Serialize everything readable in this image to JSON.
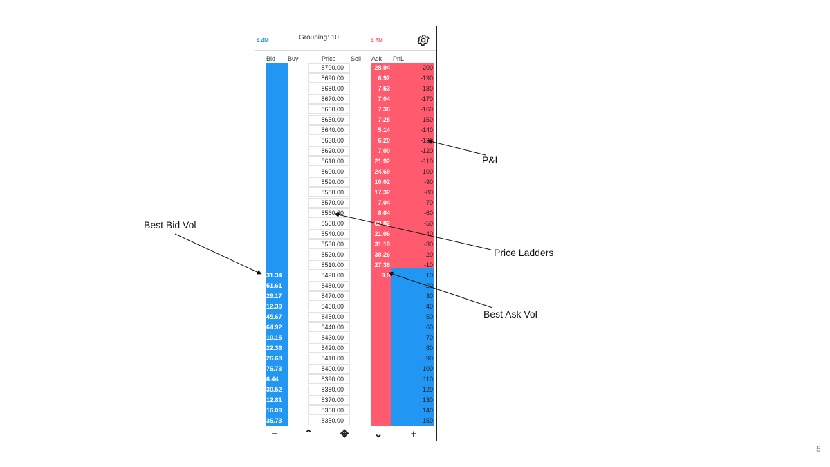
{
  "toolbar": {
    "bid_total": "4.4M",
    "grouping": "Grouping: 10",
    "ask_total": "4.6M",
    "settings_icon": "gear-icon"
  },
  "headers": {
    "bid": "Bid",
    "buy": "Buy",
    "price": "Price",
    "sell": "Sell",
    "ask": "Ask",
    "pnl": "PnL"
  },
  "rows": [
    {
      "price": "8700.00",
      "bid": "",
      "ask": "28.94",
      "pnl": "-200"
    },
    {
      "price": "8690.00",
      "bid": "",
      "ask": "6.92",
      "pnl": "-190"
    },
    {
      "price": "8680.00",
      "bid": "",
      "ask": "7.53",
      "pnl": "-180"
    },
    {
      "price": "8670.00",
      "bid": "",
      "ask": "7.04",
      "pnl": "-170"
    },
    {
      "price": "8660.00",
      "bid": "",
      "ask": "7.36",
      "pnl": "-160"
    },
    {
      "price": "8650.00",
      "bid": "",
      "ask": "7.25",
      "pnl": "-150"
    },
    {
      "price": "8640.00",
      "bid": "",
      "ask": "5.14",
      "pnl": "-140"
    },
    {
      "price": "8630.00",
      "bid": "",
      "ask": "6.20",
      "pnl": "-130"
    },
    {
      "price": "8620.00",
      "bid": "",
      "ask": "7.00",
      "pnl": "-120"
    },
    {
      "price": "8610.00",
      "bid": "",
      "ask": "21.92",
      "pnl": "-110"
    },
    {
      "price": "8600.00",
      "bid": "",
      "ask": "24.69",
      "pnl": "-100"
    },
    {
      "price": "8590.00",
      "bid": "",
      "ask": "10.02",
      "pnl": "-90"
    },
    {
      "price": "8580.00",
      "bid": "",
      "ask": "17.32",
      "pnl": "-80"
    },
    {
      "price": "8570.00",
      "bid": "",
      "ask": "7.04",
      "pnl": "-70"
    },
    {
      "price": "8560.00",
      "bid": "",
      "ask": "8.64",
      "pnl": "-60"
    },
    {
      "price": "8550.00",
      "bid": "",
      "ask": "69.82",
      "pnl": "-50"
    },
    {
      "price": "8540.00",
      "bid": "",
      "ask": "21.06",
      "pnl": "-40"
    },
    {
      "price": "8530.00",
      "bid": "",
      "ask": "31.19",
      "pnl": "-30"
    },
    {
      "price": "8520.00",
      "bid": "",
      "ask": "38.26",
      "pnl": "-20"
    },
    {
      "price": "8510.00",
      "bid": "",
      "ask": "27.36",
      "pnl": "-10"
    },
    {
      "price": "8490.00",
      "bid": "31.34",
      "ask": "9.9",
      "pnl": "10"
    },
    {
      "price": "8480.00",
      "bid": "51.61",
      "ask": "",
      "pnl": "20"
    },
    {
      "price": "8470.00",
      "bid": "29.17",
      "ask": "",
      "pnl": "30"
    },
    {
      "price": "8460.00",
      "bid": "12.30",
      "ask": "",
      "pnl": "40"
    },
    {
      "price": "8450.00",
      "bid": "45.67",
      "ask": "",
      "pnl": "50"
    },
    {
      "price": "8440.00",
      "bid": "64.92",
      "ask": "",
      "pnl": "60"
    },
    {
      "price": "8430.00",
      "bid": "10.15",
      "ask": "",
      "pnl": "70"
    },
    {
      "price": "8420.00",
      "bid": "22.36",
      "ask": "",
      "pnl": "80"
    },
    {
      "price": "8410.00",
      "bid": "26.68",
      "ask": "",
      "pnl": "90"
    },
    {
      "price": "8400.00",
      "bid": "76.73",
      "ask": "",
      "pnl": "100"
    },
    {
      "price": "8390.00",
      "bid": "6.44",
      "ask": "",
      "pnl": "110"
    },
    {
      "price": "8380.00",
      "bid": "30.52",
      "ask": "",
      "pnl": "120"
    },
    {
      "price": "8370.00",
      "bid": "12.81",
      "ask": "",
      "pnl": "130"
    },
    {
      "price": "8360.00",
      "bid": "16.09",
      "ask": "",
      "pnl": "140"
    },
    {
      "price": "8350.00",
      "bid": "36.73",
      "ask": "",
      "pnl": "150"
    }
  ],
  "bottombar": {
    "minus": "−",
    "up": "⌃",
    "center": "✥",
    "down": "⌄",
    "plus": "+"
  },
  "annotations": {
    "pnl": "P&L",
    "best_bid": "Best Bid Vol",
    "price_ladders": "Price Ladders",
    "best_ask": "Best Ask Vol"
  },
  "slide_number": "5",
  "colors": {
    "bid": "#2196f3",
    "ask": "#ff5a6e"
  }
}
